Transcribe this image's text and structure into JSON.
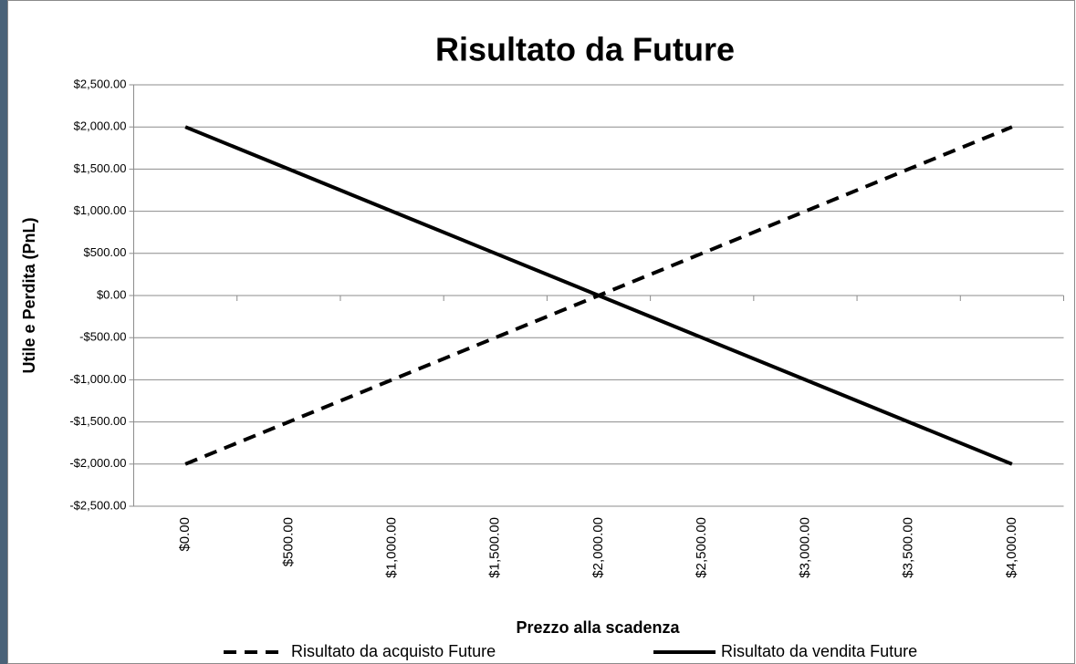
{
  "chart_data": {
    "type": "line",
    "title": "Risultato da Future",
    "x_label": "Prezzo alla scadenza",
    "y_label": "Utile e Perdita (PnL)",
    "categories": [
      "$0.00",
      "$500.00",
      "$1,000.00",
      "$1,500.00",
      "$2,000.00",
      "$2,500.00",
      "$3,000.00",
      "$3,500.00",
      "$4,000.00"
    ],
    "series": [
      {
        "name": "Risultato da acquisto Future",
        "color": "#000000",
        "line_style": "dashed",
        "values": [
          -2000,
          -1500,
          -1000,
          -500,
          0,
          500,
          1000,
          1500,
          2000
        ]
      },
      {
        "name": "Risultato da vendita Future",
        "color": "#000000",
        "line_style": "solid",
        "values": [
          2000,
          1500,
          1000,
          500,
          0,
          -500,
          -1000,
          -1500,
          -2000
        ]
      }
    ],
    "ylim": [
      -2500,
      2500
    ],
    "yticks": [
      {
        "value": -2500,
        "label": "-$2,500.00"
      },
      {
        "value": -2000,
        "label": "-$2,000.00"
      },
      {
        "value": -1500,
        "label": "-$1,500.00"
      },
      {
        "value": -1000,
        "label": "-$1,000.00"
      },
      {
        "value": -500,
        "label": "-$500.00"
      },
      {
        "value": 0,
        "label": "$0.00"
      },
      {
        "value": 500,
        "label": "$500.00"
      },
      {
        "value": 1000,
        "label": "$1,000.00"
      },
      {
        "value": 1500,
        "label": "$1,500.00"
      },
      {
        "value": 2000,
        "label": "$2,000.00"
      },
      {
        "value": 2500,
        "label": "$2,500.00"
      }
    ],
    "grid": true,
    "legend": "bottom"
  }
}
